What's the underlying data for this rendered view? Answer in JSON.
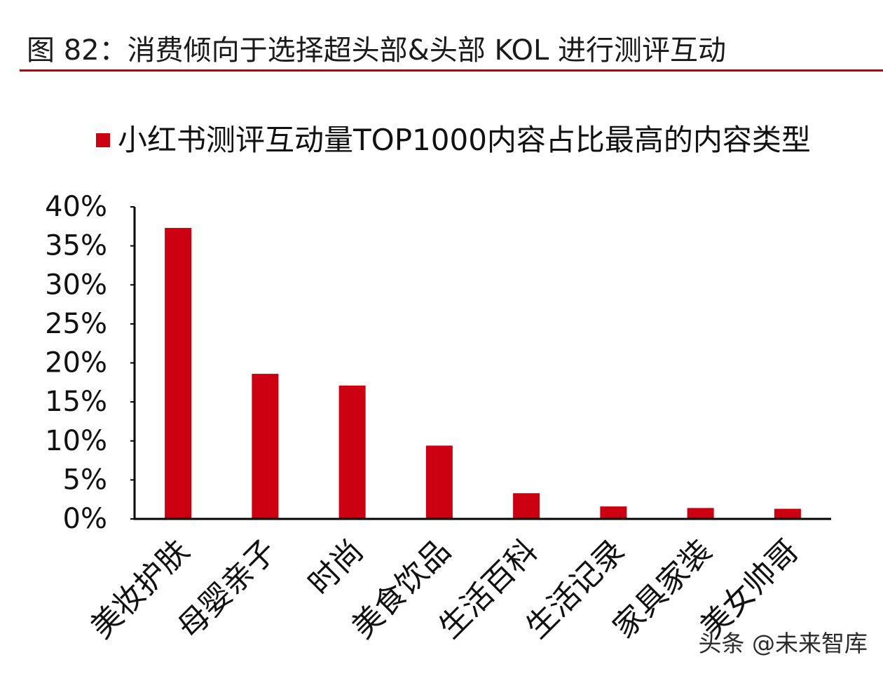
{
  "header": {
    "title": "图 82：消费倾向于选择超头部&头部 KOL 进行测评互动"
  },
  "colors": {
    "accent": "#C00000",
    "bar": "#CC0010",
    "axis": "#000000",
    "text": "#111111"
  },
  "chart_data": {
    "type": "bar",
    "title": "",
    "xlabel": "",
    "ylabel": "",
    "categories": [
      "美妆护肤",
      "母婴亲子",
      "时尚",
      "美食饮品",
      "生活百科",
      "生活记录",
      "家具家装",
      "美女帅哥"
    ],
    "series": [
      {
        "name": "小红书测评互动量TOP1000内容占比最高的内容类型",
        "values": [
          37.3,
          18.6,
          17.1,
          9.4,
          3.3,
          1.6,
          1.4,
          1.3
        ],
        "color": "#CC0010"
      }
    ],
    "ylim": [
      0,
      40
    ],
    "yticks": [
      0,
      5,
      10,
      15,
      20,
      25,
      30,
      35,
      40
    ],
    "ytick_labels": [
      "0%",
      "5%",
      "10%",
      "15%",
      "20%",
      "25%",
      "30%",
      "35%",
      "40%"
    ],
    "value_unit": "%",
    "grid": false,
    "legend": "top"
  },
  "watermark": {
    "text": "头条 @未来智库"
  }
}
